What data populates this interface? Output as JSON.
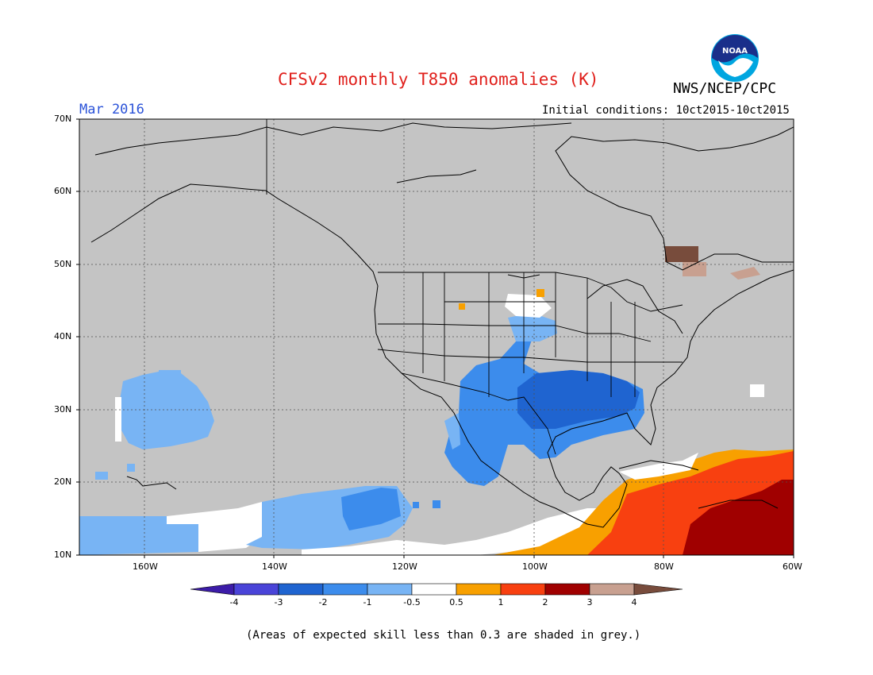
{
  "header": {
    "title": "CFSv2 monthly T850 anomalies (K)",
    "agency": "NWS/NCEP/CPC",
    "month": "Mar 2016",
    "initial_conditions": "Initial conditions: 10ct2015-10ct2015",
    "logo_text": "NOAA"
  },
  "axes": {
    "lat_labels": [
      "70N",
      "60N",
      "50N",
      "40N",
      "30N",
      "20N",
      "10N"
    ],
    "lon_labels": [
      "160W",
      "140W",
      "120W",
      "100W",
      "80W",
      "60W"
    ]
  },
  "colorbar": {
    "labels": [
      "-4",
      "-3",
      "-2",
      "-1",
      "-0.5",
      "0.5",
      "1",
      "2",
      "3",
      "4"
    ],
    "colors": [
      "#3c1ca8",
      "#4a44d8",
      "#1f64d0",
      "#3c8cec",
      "#78b4f4",
      "#ffffff",
      "#f8a000",
      "#f84010",
      "#a00000",
      "#c8a090",
      "#784c3c"
    ]
  },
  "footnote": "(Areas of expected skill less than 0.3 are shaded in grey.)",
  "colors": {
    "skill_grey": "#c4c4c4",
    "title_red": "#e0201c",
    "month_blue": "#2a52d8"
  }
}
